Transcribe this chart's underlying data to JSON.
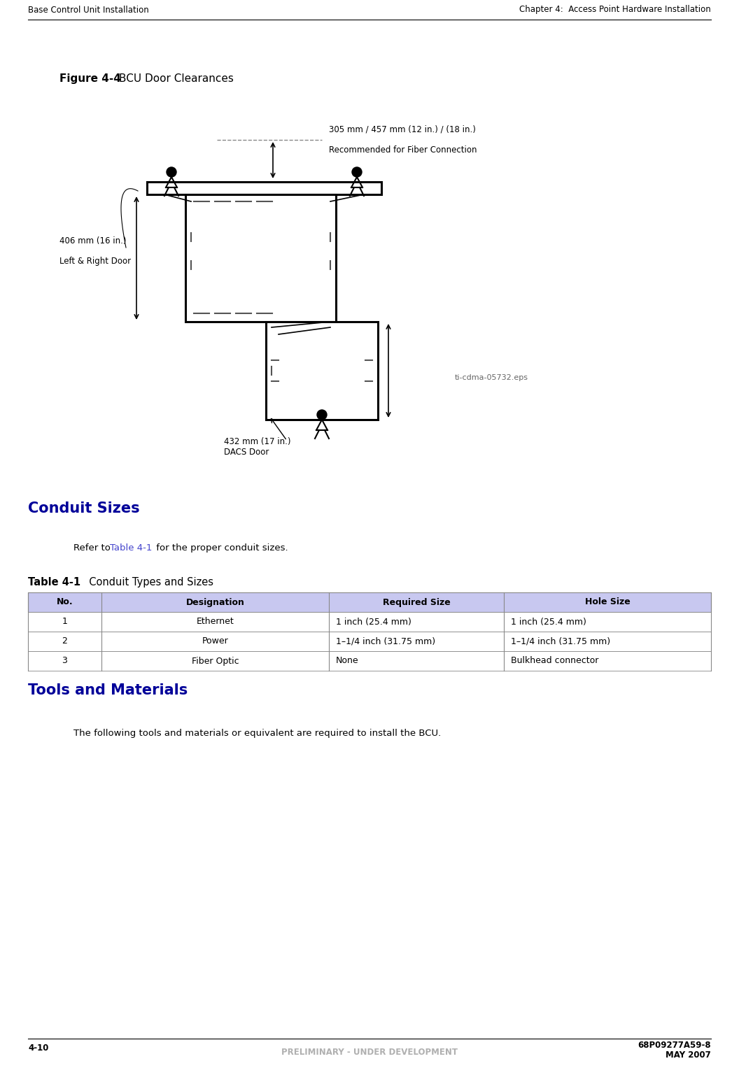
{
  "page_width": 10.56,
  "page_height": 15.27,
  "bg_color": "#ffffff",
  "header_left": "Base Control Unit Installation",
  "header_right": "Chapter 4:  Access Point Hardware Installation",
  "header_font_size": 8.5,
  "footer_left": "4-10",
  "footer_center": "PRELIMINARY - UNDER DEVELOPMENT",
  "footer_right_line1": "68P09277A59-8",
  "footer_right_line2": "MAY 2007",
  "footer_font_size": 8.5,
  "footer_center_color": "#b0b0b0",
  "figure_label_bold": "Figure 4-4",
  "figure_label_normal": "BCU Door Clearances",
  "figure_label_size": 11,
  "diagram_note": "ti-cdma-05732.eps",
  "dim_305_line1": "305 mm / 457 mm (12 in.) / (18 in.)",
  "dim_305_line2": "Recommended for Fiber Connection",
  "dim_406_text1": "406 mm (16 in.)",
  "dim_406_text2": "Left & Right Door",
  "dim_432_text1": "432 mm (17 in.)",
  "dim_432_text2": "DACS Door",
  "section_conduit_title": "Conduit Sizes",
  "section_tools_title": "Tools and Materials",
  "table_header": [
    "No.",
    "Designation",
    "Required Size",
    "Hole Size"
  ],
  "table_rows": [
    [
      "1",
      "Ethernet",
      "1 inch (25.4 mm)",
      "1 inch (25.4 mm)"
    ],
    [
      "2",
      "Power",
      "1–1/4 inch (31.75 mm)",
      "1–1/4 inch (31.75 mm)"
    ],
    [
      "3",
      "Fiber Optic",
      "None",
      "Bulkhead connector"
    ]
  ],
  "table_header_bg": "#c8c8f0",
  "table_line_color": "#888888",
  "section_title_color": "#000099",
  "tools_body": "The following tools and materials or equivalent are required to install the BCU.",
  "link_color": "#4444cc"
}
